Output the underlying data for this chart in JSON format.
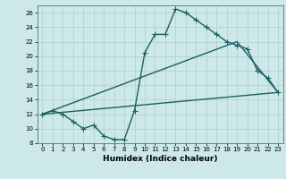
{
  "xlabel": "Humidex (Indice chaleur)",
  "bg_color": "#cce8e8",
  "line_color": "#1a6060",
  "grid_color": "#b0cccc",
  "xlim": [
    -0.5,
    23.5
  ],
  "ylim": [
    8,
    27
  ],
  "xticks": [
    0,
    1,
    2,
    3,
    4,
    5,
    6,
    7,
    8,
    9,
    10,
    11,
    12,
    13,
    14,
    15,
    16,
    17,
    18,
    19,
    20,
    21,
    22,
    23
  ],
  "yticks": [
    8,
    10,
    12,
    14,
    16,
    18,
    20,
    22,
    24,
    26
  ],
  "main_x": [
    0,
    1,
    2,
    3,
    4,
    5,
    6,
    7,
    8,
    9,
    10,
    11,
    12,
    13,
    14,
    15,
    16,
    17,
    18,
    19,
    20,
    21,
    22,
    23
  ],
  "main_y": [
    12,
    12.5,
    12,
    11,
    10,
    10.5,
    9,
    8.5,
    8.5,
    12.5,
    20.5,
    23,
    23,
    26.5,
    26,
    25,
    24,
    23,
    22,
    21.5,
    21,
    18,
    17,
    15
  ],
  "line2_x": [
    0,
    23
  ],
  "line2_y": [
    12,
    15
  ],
  "line3_x": [
    0,
    19,
    23
  ],
  "line3_y": [
    12,
    22,
    15
  ],
  "marker_size": 4,
  "line_width": 1.0
}
